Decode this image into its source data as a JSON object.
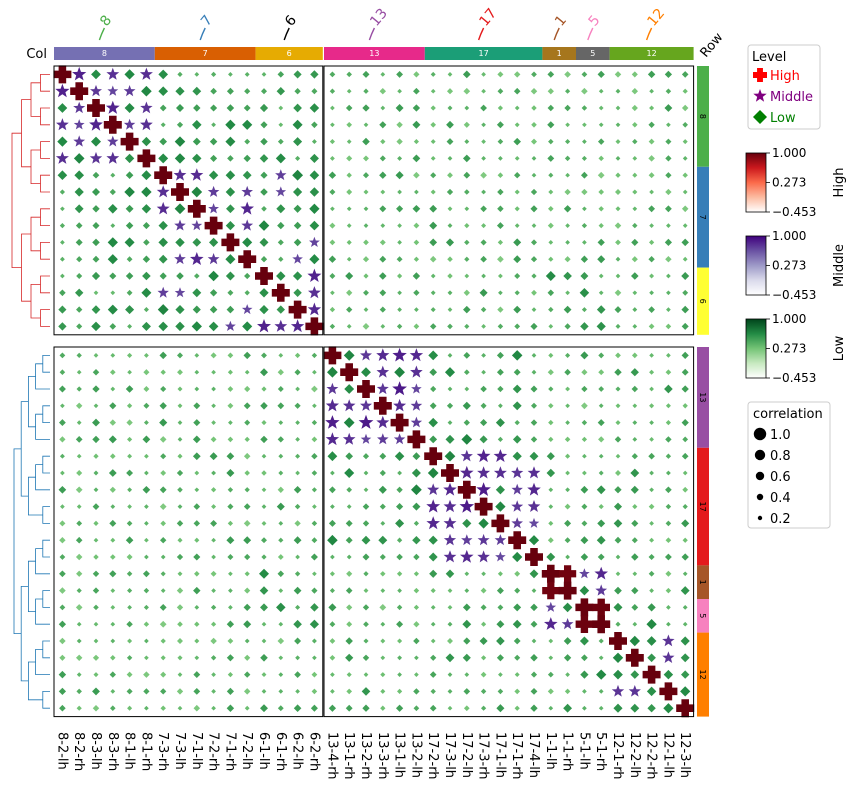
{
  "chart_data": {
    "type": "heatmap",
    "title": "",
    "xlabel": "",
    "ylabel": "",
    "col_annotation_label": "Col",
    "row_annotation_label": "Row",
    "labels": [
      "8-2-lh",
      "8-2-rh",
      "8-3-lh",
      "8-3-rh",
      "8-1-lh",
      "8-1-rh",
      "7-3-rh",
      "7-3-lh",
      "7-1-lh",
      "7-2-rh",
      "7-1-rh",
      "7-2-lh",
      "6-1-lh",
      "6-1-rh",
      "6-2-lh",
      "6-2-rh",
      "13-4-rh",
      "13-1-rh",
      "13-2-rh",
      "13-3-rh",
      "13-1-lh",
      "13-2-lh",
      "17-2-rh",
      "17-3-lh",
      "17-2-lh",
      "17-3-rh",
      "17-1-lh",
      "17-1-rh",
      "17-4-lh",
      "1-1-lh",
      "1-1-rh",
      "5-1-lh",
      "5-1-rh",
      "12-1-rh",
      "12-2-lh",
      "12-2-rh",
      "12-1-lh",
      "12-3-lh"
    ],
    "groups": [
      {
        "name": "8",
        "count": 6,
        "color": "#7570b3",
        "row_color": "#4daf4a",
        "title_color": "#4daf4a"
      },
      {
        "name": "7",
        "count": 6,
        "color": "#d95f02",
        "row_color": "#377eb8",
        "title_color": "#377eb8"
      },
      {
        "name": "6",
        "count": 4,
        "color": "#e6ab02",
        "row_color": "#ffff33",
        "title_color": "#000000"
      },
      {
        "name": "13",
        "count": 6,
        "color": "#e7298a",
        "row_color": "#984ea3",
        "title_color": "#984ea3"
      },
      {
        "name": "17",
        "count": 7,
        "color": "#1b9e77",
        "row_color": "#e41a1c",
        "title_color": "#e41a1c"
      },
      {
        "name": "1",
        "count": 2,
        "color": "#a6761d",
        "row_color": "#a65628",
        "title_color": "#a65628"
      },
      {
        "name": "5",
        "count": 2,
        "color": "#666666",
        "row_color": "#f781bf",
        "title_color": "#f781bf"
      },
      {
        "name": "12",
        "count": 5,
        "color": "#66a61e",
        "row_color": "#ff7f00",
        "title_color": "#ff7f00"
      }
    ],
    "value_range": [
      -0.453,
      1.0
    ],
    "thresholds": {
      "high": 0.85,
      "middle": 0.5
    },
    "legend": {
      "title": "Level",
      "items": [
        {
          "label": "High",
          "marker": "plus",
          "color": "#ff0000"
        },
        {
          "label": "Middle",
          "marker": "star",
          "color": "#800080"
        },
        {
          "label": "Low",
          "marker": "diamond",
          "color": "#008000"
        }
      ]
    },
    "colorbars": [
      {
        "name": "High",
        "max": "1.000",
        "mid": "0.273",
        "min": "−0.453",
        "colors": [
          "#ffffff",
          "#fcbba1",
          "#fb6a4a",
          "#cb181d",
          "#67000d"
        ]
      },
      {
        "name": "Middle",
        "max": "1.000",
        "mid": "0.273",
        "min": "−0.453",
        "colors": [
          "#ffffff",
          "#dadaeb",
          "#9e9ac8",
          "#6a51a3",
          "#3f007d"
        ]
      },
      {
        "name": "Low",
        "max": "1.000",
        "mid": "0.273",
        "min": "−0.453",
        "colors": [
          "#ffffff",
          "#c7e9c0",
          "#74c476",
          "#238b45",
          "#00441b"
        ]
      }
    ],
    "size_legend": {
      "title": "correlation",
      "values": [
        "1.0",
        "0.8",
        "0.6",
        "0.4",
        "0.2"
      ]
    },
    "dendrogram_colors": [
      "#d62728",
      "#1f77b4"
    ],
    "row_split": [
      16,
      22
    ]
  }
}
